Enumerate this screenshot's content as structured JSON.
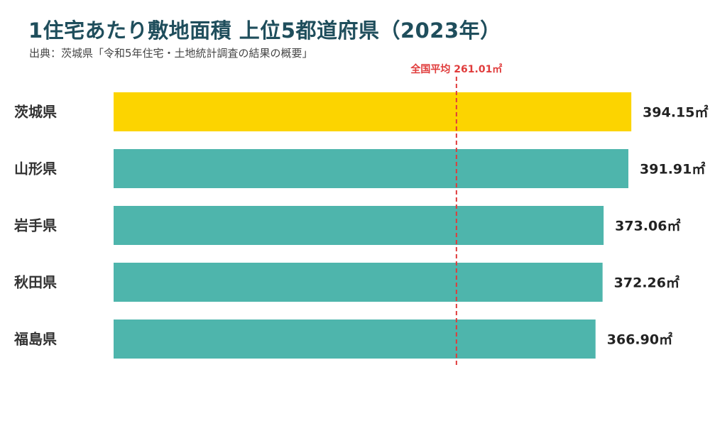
{
  "header": {
    "title": "1住宅あたり敷地面積 上位5都道府県（2023年）",
    "source": "出典：茨城県「令和5年住宅・土地統計調査の結果の概要」"
  },
  "colors": {
    "highlight": "#fcd400",
    "bar": "#4eb5ac",
    "average_line": "#e03c3c",
    "title": "#1f4e5c"
  },
  "chart_data": {
    "type": "bar",
    "orientation": "horizontal",
    "unit": "㎡",
    "categories": [
      "茨城県",
      "山形県",
      "岩手県",
      "秋田県",
      "福島県"
    ],
    "values": [
      394.15,
      391.91,
      373.06,
      372.26,
      366.9
    ],
    "value_labels": [
      "394.15㎡",
      "391.91㎡",
      "373.06㎡",
      "372.26㎡",
      "366.90㎡"
    ],
    "highlight_index": 0,
    "xlim": [
      0,
      440
    ],
    "grid": false,
    "average": {
      "label": "全国平均 261.01㎡",
      "value": 261.01
    }
  }
}
